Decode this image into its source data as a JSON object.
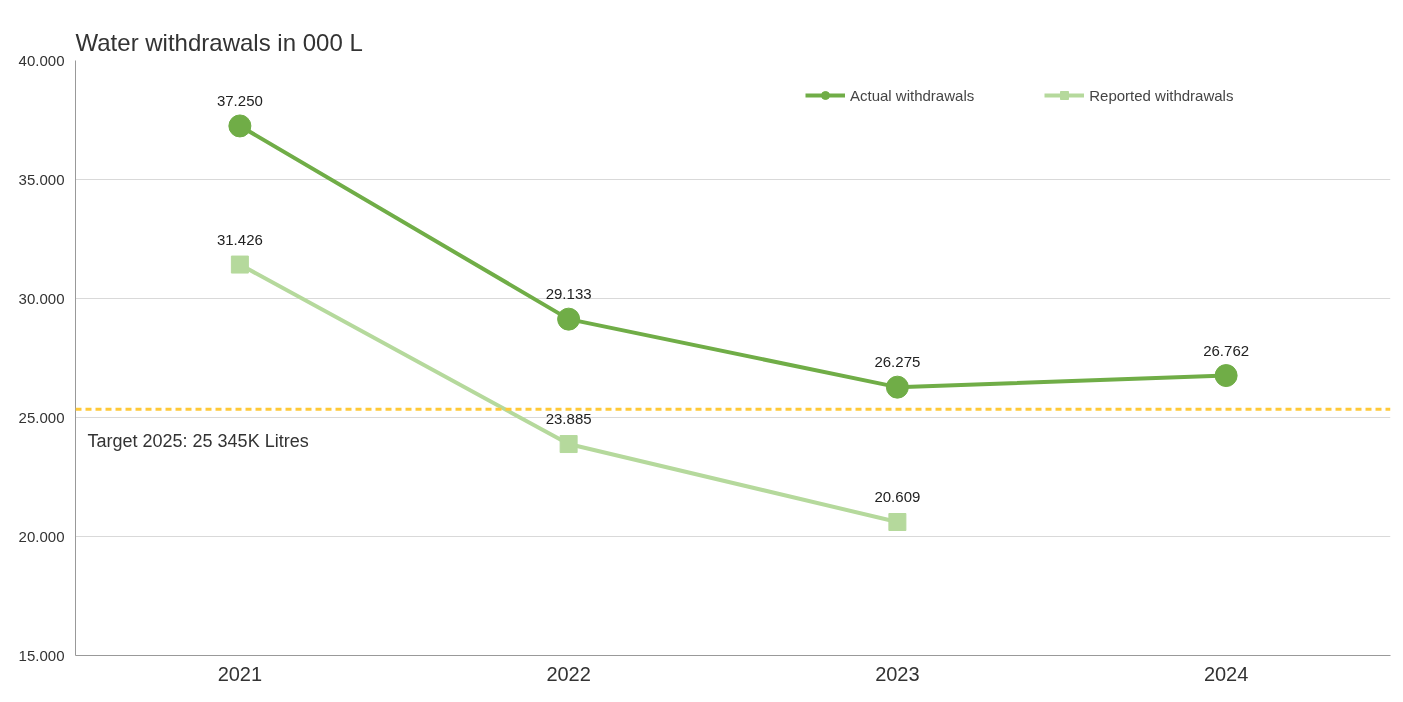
{
  "chart_data": {
    "type": "line",
    "title": "Water withdrawals in 000 L",
    "categories": [
      "2021",
      "2022",
      "2023",
      "2024"
    ],
    "series": [
      {
        "name": "Actual withdrawals",
        "color": "#70ad47",
        "marker": "circle",
        "values": [
          37250,
          29133,
          26275,
          26762
        ],
        "value_labels": [
          "37.250",
          "29.133",
          "26.275",
          "26.762"
        ]
      },
      {
        "name": "Reported withdrawals",
        "color": "#b5d99c",
        "marker": "square",
        "values": [
          31426,
          23885,
          20609,
          null
        ],
        "value_labels": [
          "31.426",
          "23.885",
          "20.609",
          null
        ]
      }
    ],
    "ylim": [
      15000,
      40000
    ],
    "yticks": [
      {
        "value": 15000,
        "label": "15.000"
      },
      {
        "value": 20000,
        "label": "20.000"
      },
      {
        "value": 25000,
        "label": "25.000"
      },
      {
        "value": 30000,
        "label": "30.000"
      },
      {
        "value": 35000,
        "label": "35.000"
      },
      {
        "value": 40000,
        "label": "40.000"
      }
    ],
    "ref_lines": [
      {
        "axis": "y",
        "value": 25345,
        "label": "Target 2025: 25 345K Litres",
        "color": "#ffc937",
        "line_style": "dashed"
      }
    ],
    "grid": "y",
    "legend": "top right",
    "line_style": "solid"
  }
}
